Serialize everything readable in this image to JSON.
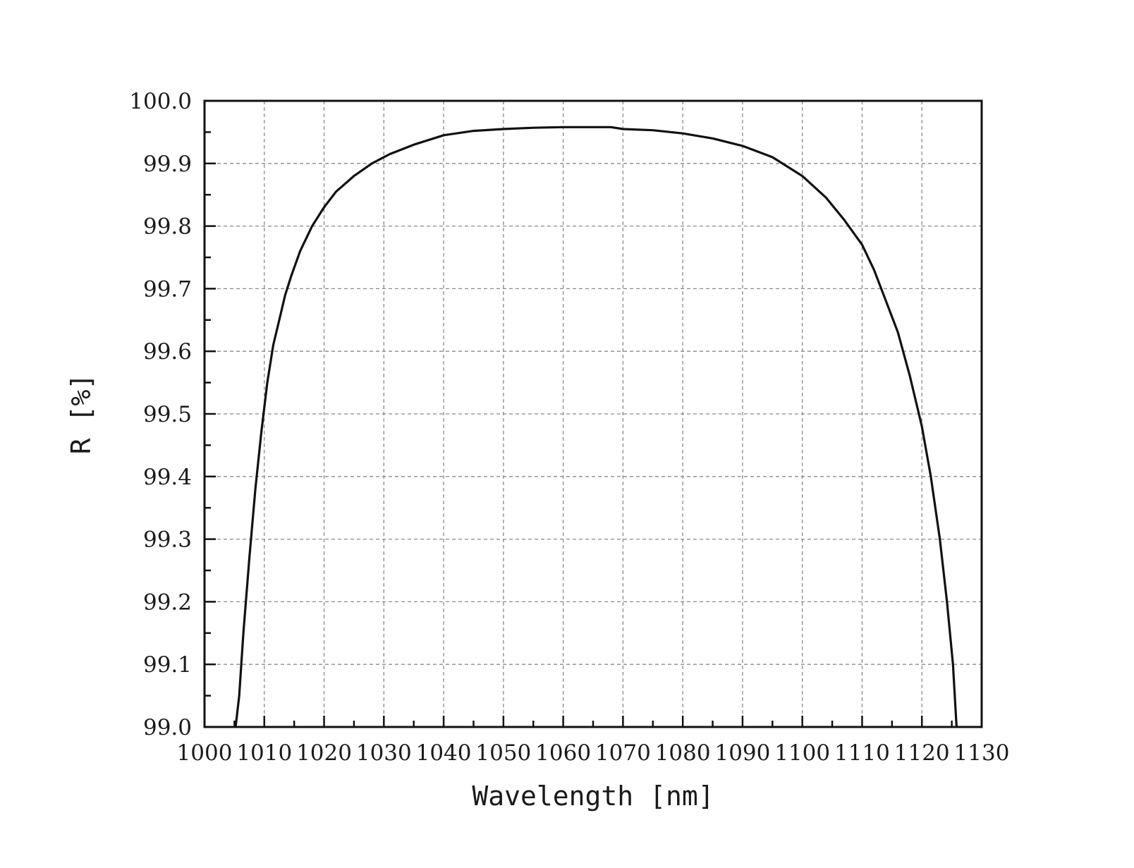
{
  "chart_data": {
    "type": "line",
    "title": "",
    "xlabel": "Wavelength [nm]",
    "ylabel": "R [%]",
    "xlim": [
      1000,
      1130
    ],
    "ylim": [
      99.0,
      100.0
    ],
    "x_ticks": [
      1000,
      1010,
      1020,
      1030,
      1040,
      1050,
      1060,
      1070,
      1080,
      1090,
      1100,
      1110,
      1120,
      1130
    ],
    "y_ticks": [
      "99.0",
      "99.1",
      "99.2",
      "99.3",
      "99.4",
      "99.5",
      "99.6",
      "99.7",
      "99.8",
      "99.9",
      "100.0"
    ],
    "grid": true,
    "legend": "none",
    "series": [
      {
        "color": "#111111",
        "x": [
          1005.2,
          1005.8,
          1006.5,
          1007.5,
          1008.5,
          1009.5,
          1010.5,
          1011.5,
          1012.5,
          1013.5,
          1014.5,
          1016,
          1018,
          1020,
          1022,
          1025,
          1028,
          1031,
          1035,
          1040,
          1045,
          1050,
          1055,
          1060,
          1065,
          1068,
          1070,
          1075,
          1080,
          1085,
          1090,
          1095,
          1100,
          1104,
          1107,
          1110,
          1112,
          1114,
          1116,
          1118,
          1120,
          1121.5,
          1123,
          1124.2,
          1125.2,
          1125.8
        ],
        "y": [
          99.0,
          99.05,
          99.15,
          99.27,
          99.38,
          99.47,
          99.55,
          99.61,
          99.65,
          99.69,
          99.72,
          99.76,
          99.8,
          99.83,
          99.855,
          99.88,
          99.9,
          99.915,
          99.93,
          99.945,
          99.952,
          99.955,
          99.957,
          99.958,
          99.958,
          99.958,
          99.955,
          99.953,
          99.948,
          99.94,
          99.928,
          99.91,
          99.88,
          99.845,
          99.81,
          99.77,
          99.73,
          99.68,
          99.63,
          99.56,
          99.48,
          99.4,
          99.3,
          99.2,
          99.1,
          99.0
        ]
      }
    ]
  }
}
